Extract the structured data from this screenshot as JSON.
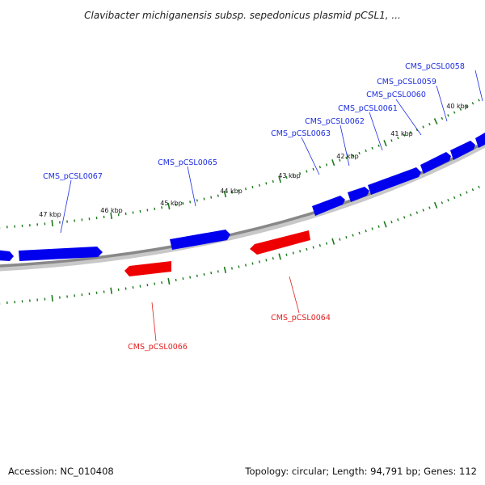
{
  "title": "Clavibacter michiganensis subsp. sepedonicus plasmid pCSL1, ...",
  "footer": {
    "accession": "Accession: NC_010408",
    "topology": "Topology: circular; Length: 94,791 bp; Genes: 112"
  },
  "colors": {
    "forward_strand": "#0000ee",
    "reverse_strand": "#ee0000",
    "tick": "#1c7a1c",
    "backbone": "#808080"
  },
  "kbp_labels": [
    "40 kbp",
    "41 kbp",
    "42 kbp",
    "43 kbp",
    "44 kbp",
    "45 kbp",
    "46 kbp",
    "47 kbp"
  ],
  "forward_gene_labels": [
    "CMS_pCSL0058",
    "CMS_pCSL0059",
    "CMS_pCSL0060",
    "CMS_pCSL0061",
    "CMS_pCSL0062",
    "CMS_pCSL0063",
    "CMS_pCSL0065",
    "CMS_pCSL0067"
  ],
  "reverse_gene_labels": [
    "CMS_pCSL0064",
    "CMS_pCSL0066"
  ]
}
